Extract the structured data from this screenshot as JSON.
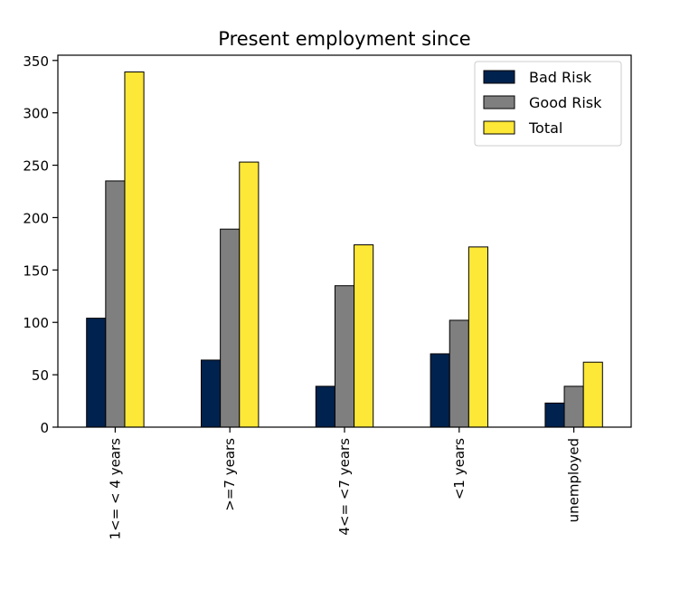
{
  "chart_data": {
    "type": "bar",
    "title": "Present employment since",
    "xlabel": "",
    "ylabel": "",
    "ylim": [
      0,
      355
    ],
    "yticks": [
      0,
      50,
      100,
      150,
      200,
      250,
      300,
      350
    ],
    "categories": [
      "1<= < 4 years",
      ">=7 years",
      "4<= <7 years",
      "<1 years",
      "unemployed"
    ],
    "series": [
      {
        "name": "Bad Risk",
        "color": "#00224e",
        "values": [
          104,
          64,
          39,
          70,
          23
        ]
      },
      {
        "name": "Good Risk",
        "color": "#7f7f7f",
        "values": [
          235,
          189,
          135,
          102,
          39
        ]
      },
      {
        "name": "Total",
        "color": "#fde737",
        "values": [
          339,
          253,
          174,
          172,
          62
        ]
      }
    ],
    "legend_position": "top-right",
    "grid": false
  }
}
